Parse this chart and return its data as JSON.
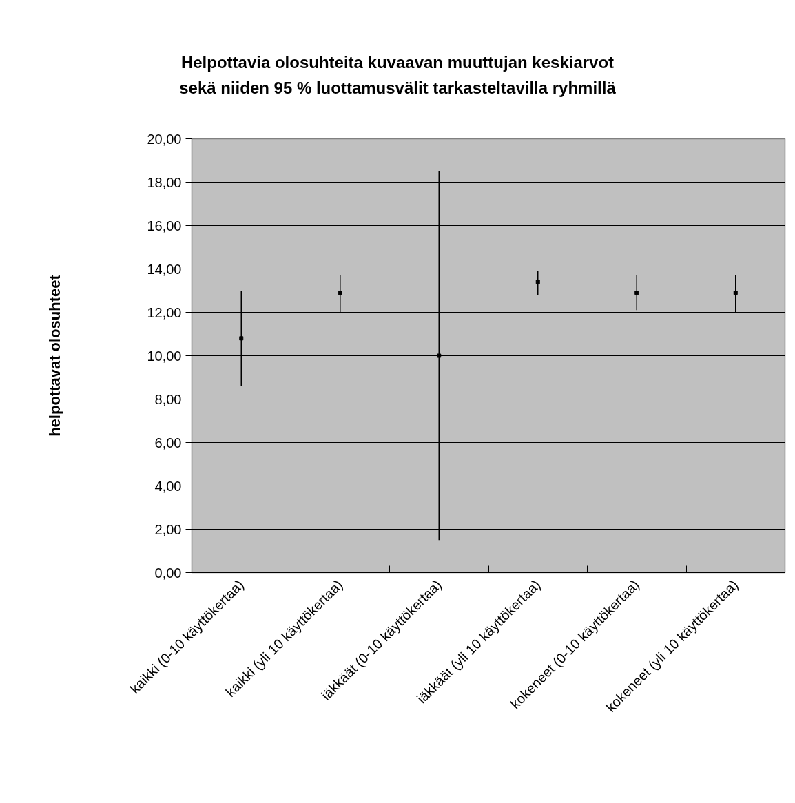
{
  "chart_data": {
    "type": "scatter",
    "title": "Helpottavia olosuhteita kuvaavan muuttujan keskiarvot sekä niiden 95 % luottamusvälit tarkasteltavilla ryhmillä",
    "ylabel": "helpottavat olosuhteet",
    "categories": [
      "kaikki (0-10 käyttökertaa)",
      "kaikki (yli 10 käyttökertaa)",
      "iäkkäät (0-10 käyttökertaa)",
      "iäkkäät (yli 10 käyttökertaa)",
      "kokeneet (0-10 käyttökertaa)",
      "kokeneet (yli 10 käyttökertaa)"
    ],
    "series": [
      {
        "color": "#000000",
        "values": [
          10.8,
          12.9,
          10.0,
          13.4,
          12.9,
          12.9
        ],
        "errors": [
          [
            8.6,
            13.0
          ],
          [
            12.0,
            13.7
          ],
          [
            1.5,
            18.5
          ],
          [
            12.8,
            13.9
          ],
          [
            12.1,
            13.7
          ],
          [
            12.0,
            13.7
          ]
        ]
      }
    ],
    "ylim": [
      0,
      20
    ],
    "yticks": [
      {
        "value": 0,
        "label": "0,00"
      },
      {
        "value": 2,
        "label": "2,00"
      },
      {
        "value": 4,
        "label": "4,00"
      },
      {
        "value": 6,
        "label": "6,00"
      },
      {
        "value": 8,
        "label": "8,00"
      },
      {
        "value": 10,
        "label": "10,00"
      },
      {
        "value": 12,
        "label": "12,00"
      },
      {
        "value": 14,
        "label": "14,00"
      },
      {
        "value": 16,
        "label": "16,00"
      },
      {
        "value": 18,
        "label": "18,00"
      },
      {
        "value": 20,
        "label": "20,00"
      }
    ],
    "grid": "y",
    "marker": "square"
  }
}
